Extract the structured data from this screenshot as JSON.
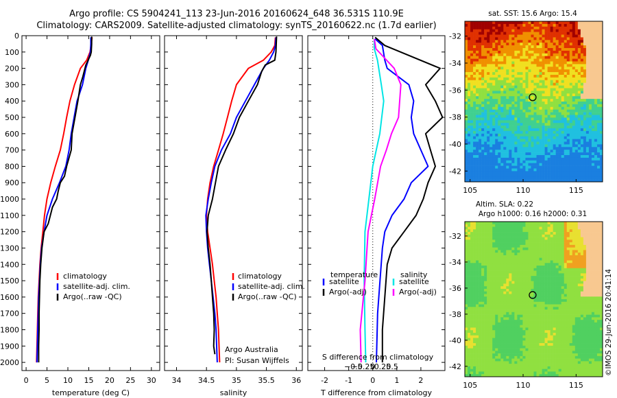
{
  "header": {
    "title_line1": "Argo profile: CS 5904241_113 23-Jun-2016 20160624_648 36.531S 110.9E",
    "title_line2": "Climatology: CARS2009. Satellite-adjusted climatology: synTS_20160622.nc (1.7d earlier)"
  },
  "colors": {
    "climatology": "#ff0000",
    "satellite": "#0000ff",
    "argo": "#000000",
    "salinity_sat": "#00e5e5",
    "salinity_argo": "#ff00ff"
  },
  "chart_data": [
    {
      "type": "line",
      "id": "temperature",
      "xlabel": "temperature (deg C)",
      "xlim": [
        -1,
        32
      ],
      "xticks": [
        0,
        5,
        10,
        15,
        20,
        25,
        30
      ],
      "ylim": [
        0,
        2050
      ],
      "yticks": [
        0,
        100,
        200,
        300,
        400,
        500,
        600,
        700,
        800,
        900,
        1000,
        1100,
        1200,
        1300,
        1400,
        1500,
        1600,
        1700,
        1800,
        1900,
        2000
      ],
      "legend": [
        "climatology",
        "satellite-adj. clim.",
        "Argo(..raw -QC)"
      ],
      "series": [
        {
          "name": "climatology",
          "color": "#ff0000",
          "points": [
            [
              15.8,
              10
            ],
            [
              15.6,
              50
            ],
            [
              15.3,
              100
            ],
            [
              14.5,
              150
            ],
            [
              13.0,
              200
            ],
            [
              11.6,
              300
            ],
            [
              10.5,
              400
            ],
            [
              9.7,
              500
            ],
            [
              9.0,
              600
            ],
            [
              8.2,
              700
            ],
            [
              7.0,
              800
            ],
            [
              5.9,
              900
            ],
            [
              5.0,
              1000
            ],
            [
              4.4,
              1100
            ],
            [
              4.0,
              1200
            ],
            [
              3.6,
              1300
            ],
            [
              3.3,
              1400
            ],
            [
              3.1,
              1500
            ],
            [
              2.9,
              1600
            ],
            [
              2.8,
              1700
            ],
            [
              2.7,
              1800
            ],
            [
              2.6,
              1900
            ],
            [
              2.5,
              2000
            ]
          ]
        },
        {
          "name": "satellite-adj. clim.",
          "color": "#0000ff",
          "points": [
            [
              15.5,
              10
            ],
            [
              15.5,
              50
            ],
            [
              15.4,
              100
            ],
            [
              14.9,
              150
            ],
            [
              14.3,
              200
            ],
            [
              13.5,
              300
            ],
            [
              12.2,
              400
            ],
            [
              11.5,
              500
            ],
            [
              10.8,
              600
            ],
            [
              10.3,
              700
            ],
            [
              9.5,
              800
            ],
            [
              8.0,
              900
            ],
            [
              6.3,
              1000
            ],
            [
              5.0,
              1100
            ],
            [
              4.3,
              1200
            ],
            [
              3.7,
              1300
            ],
            [
              3.4,
              1400
            ],
            [
              3.2,
              1500
            ],
            [
              3.0,
              1600
            ],
            [
              2.9,
              1700
            ],
            [
              2.8,
              1800
            ],
            [
              2.7,
              1900
            ],
            [
              2.6,
              2000
            ]
          ]
        },
        {
          "name": "Argo(..raw -QC)",
          "color": "#000000",
          "points": [
            [
              15.7,
              5
            ],
            [
              15.7,
              50
            ],
            [
              15.6,
              100
            ],
            [
              15.4,
              120
            ],
            [
              14.3,
              180
            ],
            [
              13.6,
              250
            ],
            [
              13.0,
              300
            ],
            [
              12.4,
              400
            ],
            [
              11.7,
              500
            ],
            [
              11.0,
              600
            ],
            [
              10.8,
              700
            ],
            [
              9.7,
              800
            ],
            [
              9.2,
              860
            ],
            [
              8.2,
              900
            ],
            [
              7.7,
              950
            ],
            [
              7.3,
              1000
            ],
            [
              6.3,
              1050
            ],
            [
              5.3,
              1150
            ],
            [
              4.3,
              1200
            ],
            [
              3.8,
              1300
            ],
            [
              3.5,
              1400
            ],
            [
              3.3,
              1500
            ],
            [
              3.2,
              1600
            ],
            [
              3.1,
              1700
            ],
            [
              3.1,
              1800
            ],
            [
              3.0,
              1900
            ],
            [
              3.0,
              2000
            ]
          ]
        }
      ]
    },
    {
      "type": "line",
      "id": "salinity",
      "xlabel": "salinity",
      "xlim": [
        33.8,
        36.1
      ],
      "xticks": [
        34,
        34.5,
        35,
        35.5,
        36
      ],
      "ylim": [
        0,
        2050
      ],
      "legend": [
        "climatology",
        "satellite-adj. clim.",
        "Argo(..raw -QC)"
      ],
      "annotation": [
        "Argo Australia",
        "PI: Susan Wijffels"
      ],
      "series": [
        {
          "name": "climatology",
          "color": "#ff0000",
          "points": [
            [
              35.65,
              10
            ],
            [
              35.64,
              60
            ],
            [
              35.58,
              100
            ],
            [
              35.45,
              150
            ],
            [
              35.2,
              200
            ],
            [
              35.0,
              300
            ],
            [
              34.92,
              400
            ],
            [
              34.85,
              500
            ],
            [
              34.78,
              600
            ],
            [
              34.7,
              700
            ],
            [
              34.62,
              800
            ],
            [
              34.56,
              900
            ],
            [
              34.52,
              1000
            ],
            [
              34.5,
              1100
            ],
            [
              34.52,
              1200
            ],
            [
              34.56,
              1300
            ],
            [
              34.6,
              1400
            ],
            [
              34.63,
              1500
            ],
            [
              34.66,
              1600
            ],
            [
              34.68,
              1700
            ],
            [
              34.7,
              1800
            ],
            [
              34.71,
              1900
            ],
            [
              34.72,
              2000
            ]
          ]
        },
        {
          "name": "satellite-adj. clim.",
          "color": "#0000ff",
          "points": [
            [
              35.66,
              10
            ],
            [
              35.65,
              60
            ],
            [
              35.62,
              100
            ],
            [
              35.55,
              150
            ],
            [
              35.45,
              200
            ],
            [
              35.3,
              300
            ],
            [
              35.15,
              400
            ],
            [
              35.0,
              500
            ],
            [
              34.9,
              600
            ],
            [
              34.75,
              700
            ],
            [
              34.64,
              800
            ],
            [
              34.58,
              900
            ],
            [
              34.53,
              1000
            ],
            [
              34.49,
              1100
            ],
            [
              34.5,
              1200
            ],
            [
              34.52,
              1300
            ],
            [
              34.55,
              1400
            ],
            [
              34.58,
              1500
            ],
            [
              34.61,
              1600
            ],
            [
              34.64,
              1700
            ],
            [
              34.66,
              1800
            ],
            [
              34.67,
              1900
            ],
            [
              34.68,
              2000
            ]
          ]
        },
        {
          "name": "Argo(..raw -QC)",
          "color": "#000000",
          "points": [
            [
              35.67,
              5
            ],
            [
              35.66,
              100
            ],
            [
              35.64,
              150
            ],
            [
              35.48,
              180
            ],
            [
              35.42,
              220
            ],
            [
              35.35,
              300
            ],
            [
              35.2,
              400
            ],
            [
              35.05,
              500
            ],
            [
              34.95,
              600
            ],
            [
              34.82,
              700
            ],
            [
              34.7,
              800
            ],
            [
              34.65,
              900
            ],
            [
              34.6,
              1000
            ],
            [
              34.53,
              1100
            ],
            [
              34.51,
              1200
            ],
            [
              34.53,
              1300
            ],
            [
              34.56,
              1400
            ],
            [
              34.58,
              1500
            ],
            [
              34.6,
              1600
            ],
            [
              34.62,
              1700
            ],
            [
              34.63,
              1800
            ],
            [
              34.62,
              1900
            ],
            [
              34.64,
              1950
            ]
          ]
        }
      ]
    },
    {
      "type": "line",
      "id": "difference",
      "xlabel": "T difference from climatology",
      "xlabel_top": "S difference from climatology",
      "t_xlim": [
        -2.7,
        3.0
      ],
      "t_xticks": [
        -2,
        -1,
        0,
        1,
        2
      ],
      "s_ticks": [
        -0.5,
        -0.25,
        0,
        0.25,
        0.5
      ],
      "ylim": [
        0,
        2050
      ],
      "legend_temperature": {
        "title": "temperature",
        "items": [
          "satellite",
          "Argo(-adj)"
        ]
      },
      "legend_salinity": {
        "title": "salinity",
        "items": [
          "satellite",
          "Argo(-adj)"
        ]
      },
      "series": [
        {
          "name": "T satellite",
          "color": "#0000ff",
          "points": [
            [
              0.1,
              20
            ],
            [
              0.4,
              60
            ],
            [
              0.5,
              150
            ],
            [
              0.6,
              200
            ],
            [
              1.5,
              300
            ],
            [
              1.7,
              400
            ],
            [
              1.6,
              500
            ],
            [
              1.7,
              600
            ],
            [
              2.0,
              700
            ],
            [
              2.3,
              800
            ],
            [
              1.6,
              900
            ],
            [
              1.3,
              1000
            ],
            [
              0.8,
              1100
            ],
            [
              0.5,
              1200
            ],
            [
              0.4,
              1300
            ],
            [
              0.3,
              1500
            ],
            [
              0.2,
              1700
            ],
            [
              0.15,
              2000
            ]
          ]
        },
        {
          "name": "T Argo(-adj)",
          "color": "#000000",
          "points": [
            [
              0.1,
              10
            ],
            [
              0.5,
              60
            ],
            [
              2.8,
              200
            ],
            [
              2.2,
              300
            ],
            [
              2.6,
              400
            ],
            [
              2.9,
              500
            ],
            [
              2.2,
              600
            ],
            [
              2.4,
              700
            ],
            [
              2.6,
              800
            ],
            [
              2.3,
              900
            ],
            [
              2.1,
              1000
            ],
            [
              1.8,
              1100
            ],
            [
              1.3,
              1200
            ],
            [
              0.8,
              1300
            ],
            [
              0.6,
              1400
            ],
            [
              0.5,
              1600
            ],
            [
              0.4,
              1800
            ],
            [
              0.4,
              2000
            ]
          ]
        },
        {
          "name": "S satellite",
          "color": "#00e5e5",
          "points": [
            [
              0.04,
              20
            ],
            [
              0.04,
              80
            ],
            [
              0.12,
              150
            ],
            [
              0.22,
              300
            ],
            [
              0.28,
              400
            ],
            [
              0.18,
              600
            ],
            [
              0.0,
              800
            ],
            [
              -0.1,
              1000
            ],
            [
              -0.2,
              1200
            ],
            [
              -0.22,
              1500
            ],
            [
              -0.2,
              1800
            ],
            [
              -0.18,
              2000
            ]
          ]
        },
        {
          "name": "S Argo(-adj)",
          "color": "#ff00ff",
          "points": [
            [
              0.04,
              20
            ],
            [
              0.08,
              80
            ],
            [
              0.55,
              200
            ],
            [
              0.72,
              300
            ],
            [
              0.66,
              500
            ],
            [
              0.48,
              600
            ],
            [
              0.35,
              700
            ],
            [
              0.2,
              800
            ],
            [
              0.05,
              1000
            ],
            [
              -0.12,
              1200
            ],
            [
              -0.2,
              1500
            ],
            [
              -0.32,
              1800
            ],
            [
              -0.3,
              2000
            ]
          ]
        }
      ]
    }
  ],
  "maps": {
    "sst": {
      "title": "sat. SST: 15.6  Argo: 15.4",
      "xlim": [
        104.5,
        117.5
      ],
      "ylim": [
        -42.8,
        -30.9
      ],
      "xticks": [
        105,
        110,
        115
      ],
      "yticks": [
        -32,
        -34,
        -36,
        -38,
        -40,
        -42
      ],
      "argo_position": {
        "lon": 110.9,
        "lat": -36.531
      }
    },
    "sla": {
      "title_line1": "Altim. SLA: 0.22",
      "title_line2": "Argo h1000: 0.16  h2000: 0.31",
      "xlim": [
        104.5,
        117.5
      ],
      "ylim": [
        -42.8,
        -30.9
      ],
      "xticks": [
        105,
        110,
        115
      ],
      "yticks": [
        -32,
        -34,
        -36,
        -38,
        -40,
        -42
      ],
      "argo_position": {
        "lon": 110.9,
        "lat": -36.531
      }
    }
  },
  "footer": {
    "stamp": "©IMOS 29-Jun-2016 20:41:14"
  }
}
